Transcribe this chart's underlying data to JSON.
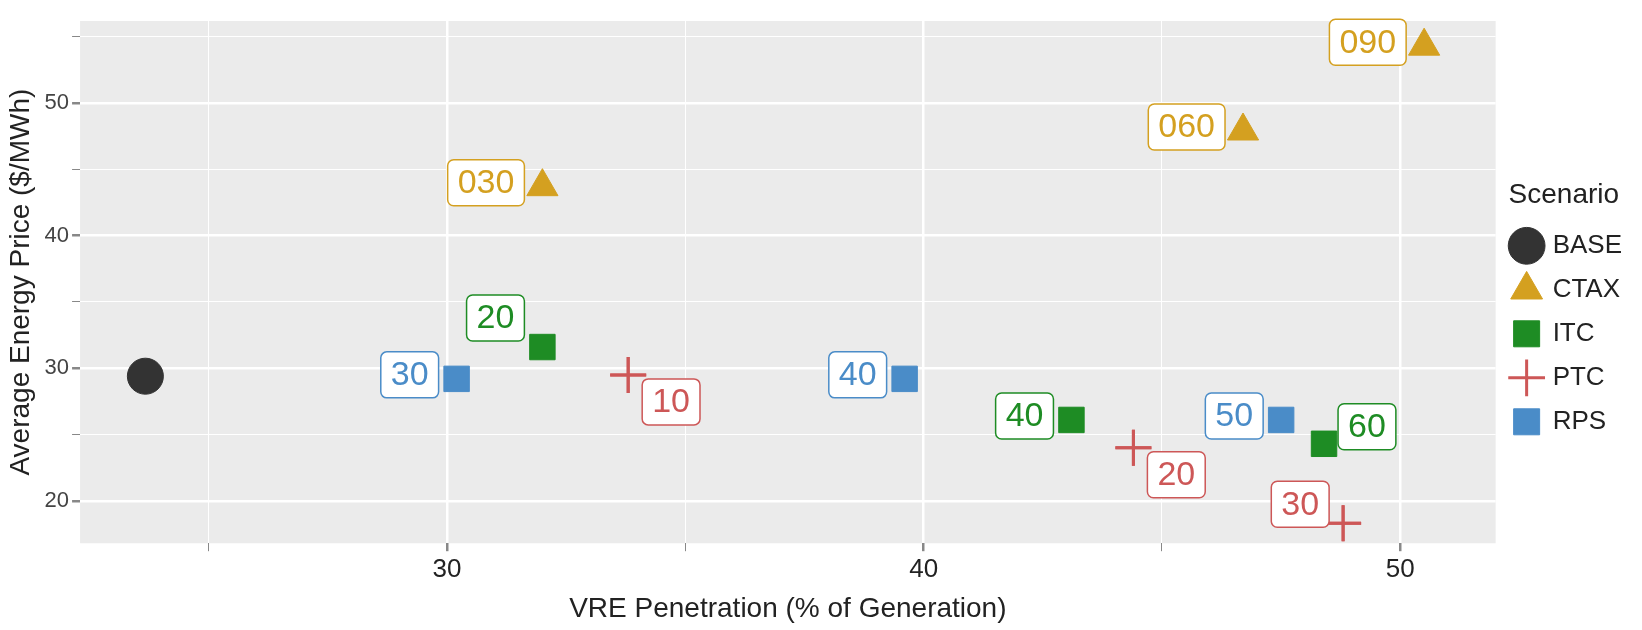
{
  "chart_data": {
    "type": "scatter",
    "xlabel": "VRE Penetration (% of Generation)",
    "ylabel": "Average Energy Price ($/MWh)",
    "legend_title": "Scenario",
    "legend": "right",
    "grid": true,
    "xlim": [
      22.3,
      52
    ],
    "ylim": [
      16.8,
      56.2
    ],
    "xticks": [
      {
        "value": 25,
        "label": null
      },
      30,
      {
        "value": 35,
        "label": null
      },
      40,
      {
        "value": 45,
        "label": null
      },
      50
    ],
    "yticks": [
      20,
      {
        "value": 25,
        "label": null
      },
      30,
      {
        "value": 35,
        "label": null
      },
      40,
      {
        "value": 45,
        "label": null
      },
      50,
      {
        "value": 55,
        "label": null
      }
    ],
    "series": [
      {
        "name": "BASE",
        "color": "#333333",
        "marker": "circle",
        "x": [
          23.67
        ],
        "values": [
          29.4
        ]
      },
      {
        "name": "CTAX",
        "color": "#d4a020",
        "marker": "triangle",
        "x": [
          32.0,
          46.7,
          50.5
        ],
        "values": [
          43.7,
          47.9,
          54.3
        ]
      },
      {
        "name": "ITC",
        "color": "#1e8c24",
        "marker": "square",
        "x": [
          32.0,
          43.1,
          48.4
        ],
        "values": [
          31.6,
          26.1,
          24.3
        ]
      },
      {
        "name": "PTC",
        "color": "#cd5757",
        "marker": "cross",
        "x": [
          33.8,
          44.4,
          48.8
        ],
        "values": [
          29.5,
          24.0,
          18.3
        ]
      },
      {
        "name": "RPS",
        "color": "#4a8cc8",
        "marker": "square",
        "x": [
          30.2,
          39.6,
          47.5
        ],
        "values": [
          29.2,
          29.2,
          26.1
        ]
      }
    ],
    "annotations": [
      {
        "text": "030",
        "x": 32.0,
        "y": 43.7
      },
      {
        "text": "060",
        "x": 46.7,
        "y": 47.9
      },
      {
        "text": "090",
        "x": 50.5,
        "y": 54.3
      },
      {
        "text": "20",
        "x": 32.0,
        "y": 31.6
      },
      {
        "text": "40",
        "x": 43.1,
        "y": 26.1
      },
      {
        "text": "60",
        "x": 48.4,
        "y": 24.3
      },
      {
        "text": "10",
        "x": 33.8,
        "y": 29.5
      },
      {
        "text": "20",
        "x": 44.4,
        "y": 24.0
      },
      {
        "text": "30",
        "x": 48.8,
        "y": 18.3
      },
      {
        "text": "30",
        "x": 30.2,
        "y": 29.2
      },
      {
        "text": "40",
        "x": 39.6,
        "y": 29.2
      },
      {
        "text": "50",
        "x": 47.5,
        "y": 26.1
      }
    ]
  }
}
